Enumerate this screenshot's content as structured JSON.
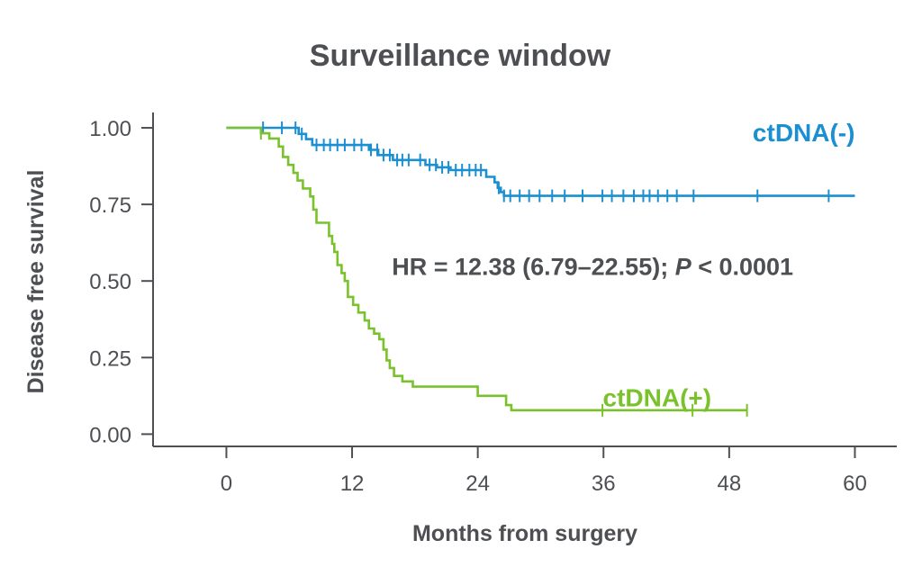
{
  "chart_data": {
    "type": "line",
    "subtype": "kaplan-meier",
    "title": "Surveillance window",
    "xlabel": "Months from surgery",
    "ylabel": "Disease free survival",
    "xlim": [
      -7,
      64
    ],
    "ylim": [
      -0.04,
      1.05
    ],
    "xticks": [
      0,
      12,
      24,
      36,
      48,
      60
    ],
    "yticks": [
      "0.00",
      "0.25",
      "0.50",
      "0.75",
      "1.00"
    ],
    "grid": false,
    "annotation": {
      "prefix": "HR = 12.38 (6.79–22.55); ",
      "p_symbol": "P",
      "suffix": " < 0.0001",
      "anchor": {
        "x": 15.8,
        "y": 0.52
      }
    },
    "series": [
      {
        "name": "ctDNA(-)",
        "color": "#1a8fd1",
        "label_anchor": {
          "x": 60,
          "y": 0.985
        },
        "steps": [
          [
            0,
            1.0
          ],
          [
            6.9,
            0.98
          ],
          [
            7.6,
            0.963
          ],
          [
            8.2,
            0.944
          ],
          [
            13.6,
            0.928
          ],
          [
            14.5,
            0.911
          ],
          [
            15.9,
            0.895
          ],
          [
            19.0,
            0.879
          ],
          [
            20.1,
            0.871
          ],
          [
            21.4,
            0.862
          ],
          [
            24.8,
            0.84
          ],
          [
            25.6,
            0.822
          ],
          [
            25.9,
            0.804
          ],
          [
            26.2,
            0.79
          ],
          [
            26.5,
            0.778
          ],
          [
            60,
            0.778
          ]
        ],
        "censor_times": [
          3.5,
          5.3,
          6.6,
          7.2,
          8.6,
          9.3,
          9.9,
          10.6,
          11.3,
          12.2,
          12.9,
          13.8,
          14.4,
          15.0,
          15.6,
          16.3,
          16.8,
          17.4,
          18.5,
          19.4,
          20.0,
          20.6,
          21.2,
          21.9,
          22.5,
          23.2,
          23.8,
          24.3,
          26.0,
          26.5,
          27.1,
          28.0,
          28.9,
          29.9,
          31.1,
          32.3,
          34.0,
          35.9,
          36.8,
          37.9,
          38.9,
          39.8,
          40.4,
          41.2,
          42.1,
          43.0,
          44.6,
          50.7,
          57.5
        ]
      },
      {
        "name": "ctDNA(+)",
        "color": "#7ac22b",
        "label_anchor": {
          "x": 46.3,
          "y": 0.12
        },
        "steps": [
          [
            0,
            1.0
          ],
          [
            3.3,
            0.982
          ],
          [
            4.1,
            0.965
          ],
          [
            5.0,
            0.939
          ],
          [
            5.4,
            0.905
          ],
          [
            5.9,
            0.879
          ],
          [
            6.4,
            0.853
          ],
          [
            6.8,
            0.828
          ],
          [
            7.3,
            0.802
          ],
          [
            8.0,
            0.776
          ],
          [
            8.3,
            0.733
          ],
          [
            8.6,
            0.69
          ],
          [
            9.8,
            0.647
          ],
          [
            10.1,
            0.621
          ],
          [
            10.3,
            0.595
          ],
          [
            10.6,
            0.552
          ],
          [
            11.0,
            0.526
          ],
          [
            11.3,
            0.5
          ],
          [
            11.6,
            0.448
          ],
          [
            12.1,
            0.422
          ],
          [
            12.6,
            0.397
          ],
          [
            13.2,
            0.371
          ],
          [
            13.6,
            0.345
          ],
          [
            14.1,
            0.328
          ],
          [
            14.6,
            0.31
          ],
          [
            15.0,
            0.276
          ],
          [
            15.3,
            0.241
          ],
          [
            15.6,
            0.216
          ],
          [
            16.0,
            0.19
          ],
          [
            16.8,
            0.172
          ],
          [
            17.8,
            0.155
          ],
          [
            24.0,
            0.125
          ],
          [
            26.7,
            0.095
          ],
          [
            27.2,
            0.078
          ],
          [
            49.7,
            0.078
          ]
        ],
        "censor_times": [
          3.3,
          35.9,
          44.5,
          49.7
        ]
      }
    ]
  }
}
